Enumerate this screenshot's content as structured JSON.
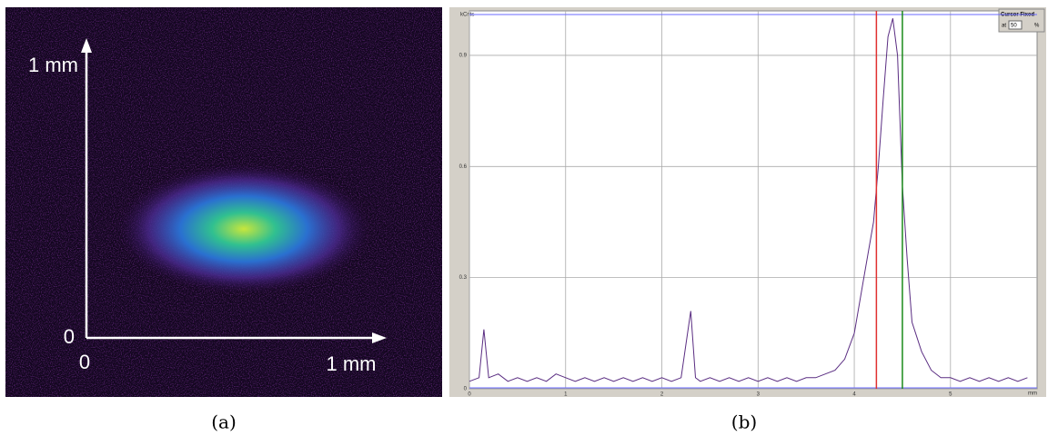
{
  "panel_a": {
    "y_axis_label": "1 mm",
    "y_origin_label": "0",
    "x_origin_label": "0",
    "x_axis_label": "1 mm",
    "caption": "(a)"
  },
  "chart_data": {
    "type": "line",
    "ylabel": "kCnts",
    "xlabel": "mm",
    "caption": "(b)",
    "x": [
      0,
      0.1,
      0.15,
      0.2,
      0.3,
      0.4,
      0.5,
      0.6,
      0.7,
      0.8,
      0.9,
      1.0,
      1.1,
      1.2,
      1.3,
      1.4,
      1.5,
      1.6,
      1.7,
      1.8,
      1.9,
      2.0,
      2.1,
      2.2,
      2.3,
      2.35,
      2.4,
      2.5,
      2.6,
      2.7,
      2.8,
      2.9,
      3.0,
      3.1,
      3.2,
      3.3,
      3.4,
      3.5,
      3.6,
      3.7,
      3.8,
      3.9,
      4.0,
      4.1,
      4.2,
      4.25,
      4.3,
      4.35,
      4.4,
      4.45,
      4.5,
      4.55,
      4.6,
      4.7,
      4.8,
      4.9,
      5.0,
      5.1,
      5.2,
      5.3,
      5.4,
      5.5,
      5.6,
      5.7,
      5.8
    ],
    "values": [
      0.02,
      0.03,
      0.16,
      0.03,
      0.04,
      0.02,
      0.03,
      0.02,
      0.03,
      0.02,
      0.04,
      0.03,
      0.02,
      0.03,
      0.02,
      0.03,
      0.02,
      0.03,
      0.02,
      0.03,
      0.02,
      0.03,
      0.02,
      0.03,
      0.21,
      0.03,
      0.02,
      0.03,
      0.02,
      0.03,
      0.02,
      0.03,
      0.02,
      0.03,
      0.02,
      0.03,
      0.02,
      0.03,
      0.03,
      0.04,
      0.05,
      0.08,
      0.15,
      0.3,
      0.45,
      0.6,
      0.78,
      0.95,
      1.0,
      0.9,
      0.55,
      0.35,
      0.18,
      0.1,
      0.05,
      0.03,
      0.03,
      0.02,
      0.03,
      0.02,
      0.03,
      0.02,
      0.03,
      0.02,
      0.03
    ],
    "color": "#5a2d82",
    "xlim": [
      0,
      5.9
    ],
    "ylim": [
      0,
      1.02
    ],
    "xticks": [
      0,
      1,
      2,
      3,
      4,
      5
    ],
    "yticks": [
      0,
      0.3,
      0.6,
      0.9
    ],
    "grid": true,
    "cursors": [
      {
        "value": 4.23,
        "color": "#e03030"
      },
      {
        "value": 4.5,
        "color": "#1a8a1a"
      }
    ],
    "cursor_box": {
      "title": "Cursor Fixed",
      "at": "at",
      "level": "50",
      "unit": "%"
    }
  }
}
